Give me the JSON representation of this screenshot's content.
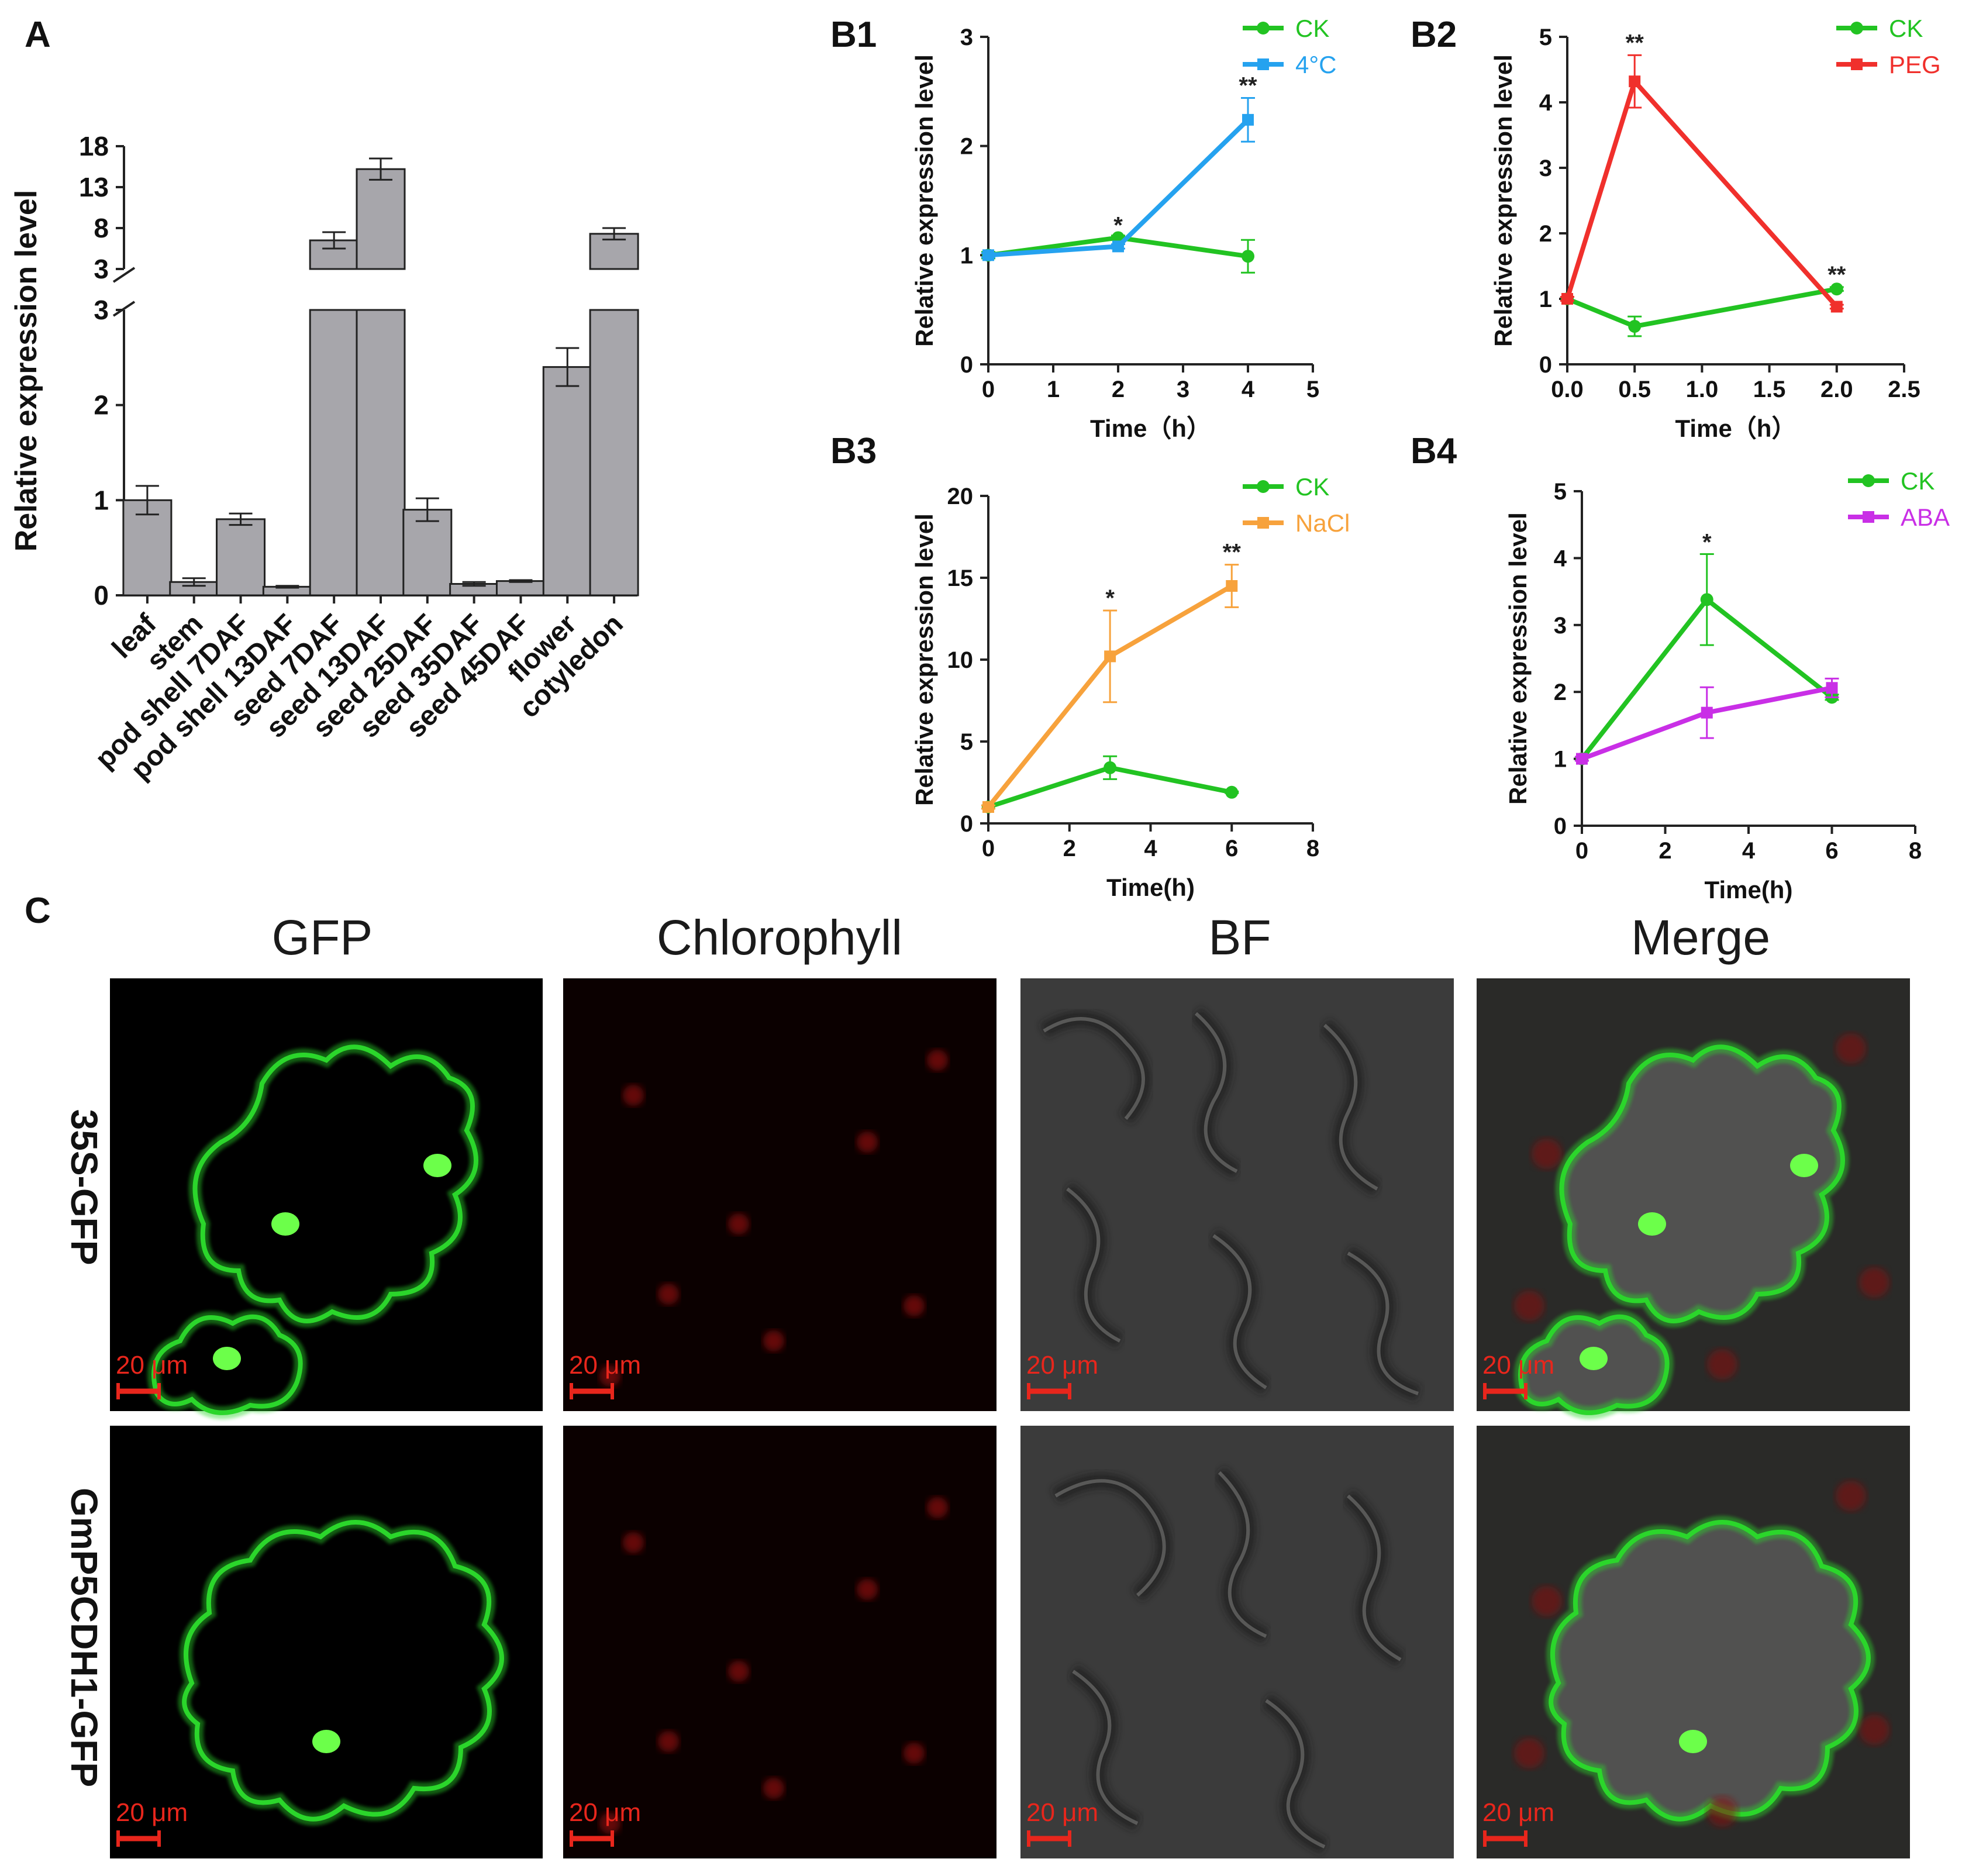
{
  "panel_labels": {
    "A": "A",
    "B1": "B1",
    "B2": "B2",
    "B3": "B3",
    "B4": "B4",
    "C": "C"
  },
  "chart_data": [
    {
      "id": "A",
      "type": "bar",
      "title": "",
      "xlabel": "",
      "ylabel": "Relative expression level",
      "broken_axis": true,
      "lower_ylim": [
        0,
        3
      ],
      "lower_ticks": [
        "0",
        "1",
        "2",
        "3"
      ],
      "upper_ylim": [
        3,
        18
      ],
      "upper_ticks": [
        "3",
        "8",
        "13",
        "18"
      ],
      "bar_color": "#a7a6ab",
      "categories": [
        "leaf",
        "stem",
        "pod shell 7DAF",
        "pod shell 13DAF",
        "seed 7DAF",
        "seed 13DAF",
        "seed 25DAF",
        "seed 35DAF",
        "seed 45DAF",
        "flower",
        "cotyledon"
      ],
      "values": [
        1.0,
        0.14,
        0.8,
        0.09,
        6.5,
        15.2,
        0.9,
        0.12,
        0.15,
        2.4,
        7.3
      ],
      "errors": [
        0.15,
        0.04,
        0.06,
        0.01,
        1.0,
        1.3,
        0.12,
        0.02,
        0.01,
        0.2,
        0.7
      ]
    },
    {
      "id": "B1",
      "type": "line",
      "xlabel": "Time（h）",
      "ylabel": "Relative expression level",
      "xlim": [
        0,
        5
      ],
      "ylim": [
        0,
        3
      ],
      "xticks": [
        0,
        1,
        2,
        3,
        4,
        5
      ],
      "yticks": [
        0,
        1,
        2,
        3
      ],
      "legend_position": "top-right",
      "series": [
        {
          "name": "CK",
          "color": "#22c322",
          "marker": "circle",
          "x": [
            0,
            2,
            4
          ],
          "y": [
            1.0,
            1.16,
            0.99
          ],
          "err": [
            0.03,
            0.02,
            0.15
          ]
        },
        {
          "name": "4°C",
          "color": "#25a2ef",
          "marker": "square",
          "x": [
            0,
            2,
            4
          ],
          "y": [
            1.0,
            1.08,
            2.24
          ],
          "err": [
            0.02,
            0.02,
            0.2
          ]
        }
      ],
      "annotations": [
        {
          "x": 2,
          "y": 1.16,
          "text": "*"
        },
        {
          "x": 4,
          "y": 2.44,
          "text": "**"
        }
      ]
    },
    {
      "id": "B2",
      "type": "line",
      "xlabel": "Time（h）",
      "ylabel": "Relative expression level",
      "xlim": [
        0,
        2.5
      ],
      "ylim": [
        0,
        5
      ],
      "xticks": [
        "0.0",
        "0.5",
        "1.0",
        "1.5",
        "2.0",
        "2.5"
      ],
      "yticks": [
        0,
        1,
        2,
        3,
        4,
        5
      ],
      "legend_position": "top-right",
      "series": [
        {
          "name": "CK",
          "color": "#22c322",
          "marker": "circle",
          "x": [
            0,
            0.5,
            2.0
          ],
          "y": [
            1.0,
            0.58,
            1.15
          ],
          "err": [
            0.03,
            0.15,
            0.03
          ]
        },
        {
          "name": "PEG",
          "color": "#f0302c",
          "marker": "square",
          "x": [
            0,
            0.5,
            2.0
          ],
          "y": [
            1.0,
            4.32,
            0.88
          ],
          "err": [
            0.03,
            0.4,
            0.03
          ]
        }
      ],
      "annotations": [
        {
          "x": 0.5,
          "y": 4.72,
          "text": "**"
        },
        {
          "x": 2.0,
          "y": 1.18,
          "text": "**"
        }
      ]
    },
    {
      "id": "B3",
      "type": "line",
      "xlabel": "Time(h)",
      "ylabel": "Relative expression level",
      "xlim": [
        0,
        8
      ],
      "ylim": [
        0,
        20
      ],
      "xticks": [
        0,
        2,
        4,
        6,
        8
      ],
      "yticks": [
        0,
        5,
        10,
        15,
        20
      ],
      "legend_position": "top-right",
      "series": [
        {
          "name": "CK",
          "color": "#22c322",
          "marker": "circle",
          "x": [
            0,
            3,
            6
          ],
          "y": [
            1.0,
            3.4,
            1.9
          ],
          "err": [
            0.1,
            0.7,
            0.05
          ]
        },
        {
          "name": "NaCl",
          "color": "#f7a23c",
          "marker": "square",
          "x": [
            0,
            3,
            6
          ],
          "y": [
            1.0,
            10.2,
            14.5
          ],
          "err": [
            0.1,
            2.8,
            1.3
          ]
        }
      ],
      "annotations": [
        {
          "x": 3,
          "y": 13.0,
          "text": "*"
        },
        {
          "x": 6,
          "y": 15.8,
          "text": "**"
        }
      ]
    },
    {
      "id": "B4",
      "type": "line",
      "xlabel": "Time(h)",
      "ylabel": "Relative expression level",
      "xlim": [
        0,
        8
      ],
      "ylim": [
        0,
        5
      ],
      "xticks": [
        0,
        2,
        4,
        6,
        8
      ],
      "yticks": [
        0,
        1,
        2,
        3,
        4,
        5
      ],
      "legend_position": "top-right",
      "series": [
        {
          "name": "CK",
          "color": "#22c322",
          "marker": "circle",
          "x": [
            0,
            3,
            6
          ],
          "y": [
            1.0,
            3.38,
            1.92
          ],
          "err": [
            0.03,
            0.68,
            0.04
          ]
        },
        {
          "name": "ABA",
          "color": "#c92fe6",
          "marker": "square",
          "x": [
            0,
            3,
            6
          ],
          "y": [
            1.0,
            1.69,
            2.06
          ],
          "err": [
            0.03,
            0.38,
            0.14
          ]
        }
      ],
      "annotations": [
        {
          "x": 3,
          "y": 4.05,
          "text": "*"
        }
      ]
    }
  ],
  "micrographs": {
    "column_headers": [
      "GFP",
      "Chlorophyll",
      "BF",
      "Merge"
    ],
    "row_labels": [
      "35S-GFP",
      "GmP5CDH1-GFP"
    ],
    "scale_bar_label": "20 μm",
    "colors": {
      "gfp": "#2bd62b",
      "chlorophyll": "#8a1010",
      "scale_bar": "#e8261c",
      "bf_background": "#3b3b3b"
    }
  }
}
